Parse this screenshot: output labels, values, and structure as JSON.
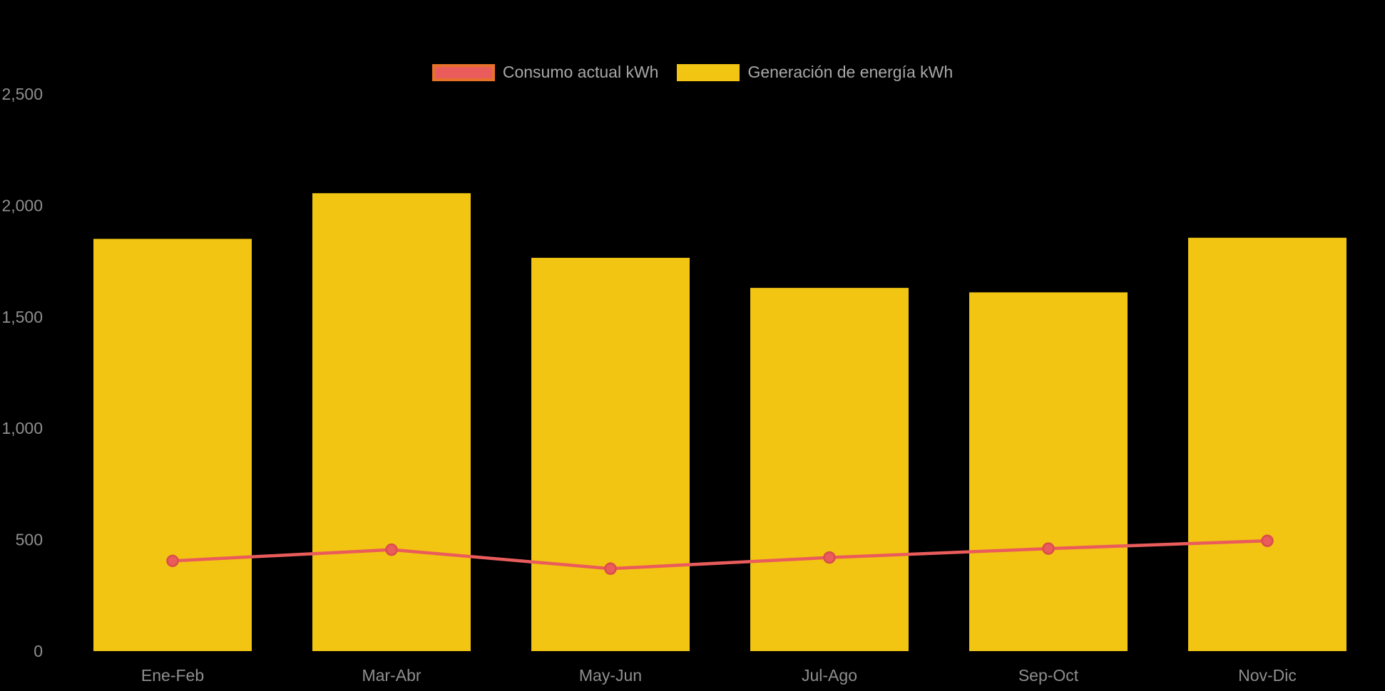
{
  "page": {
    "background": "#000000"
  },
  "legend": {
    "items": [
      {
        "label": "Consumo actual kWh",
        "swatch_fill": "#ea5c5c",
        "swatch_border": "#e8712a",
        "series_type": "line"
      },
      {
        "label": "Generación de energía kWh",
        "swatch_fill": "#f2c512",
        "swatch_border": "#f2c512",
        "series_type": "bar"
      }
    ]
  },
  "chart_data": {
    "type": "bar",
    "title": "",
    "xlabel": "",
    "ylabel": "",
    "categories": [
      "Ene-Feb",
      "Mar-Abr",
      "May-Jun",
      "Jul-Ago",
      "Sep-Oct",
      "Nov-Dic"
    ],
    "series": [
      {
        "name": "Consumo actual kWh",
        "type": "line",
        "color": "#ea5c5c",
        "point_border": "#da4d4d",
        "values": [
          405,
          455,
          370,
          420,
          460,
          495
        ]
      },
      {
        "name": "Generación de energía kWh",
        "type": "bar",
        "color": "#f2c512",
        "values": [
          1850,
          2055,
          1765,
          1630,
          1610,
          1855
        ]
      }
    ],
    "ylim": [
      0,
      2500
    ],
    "yticks": [
      0,
      500,
      1000,
      1500,
      2000,
      2500
    ],
    "ytick_labels": [
      "0",
      "500",
      "1,000",
      "1,500",
      "2,000",
      "2,500"
    ],
    "grid": false,
    "legend_position": "top"
  }
}
